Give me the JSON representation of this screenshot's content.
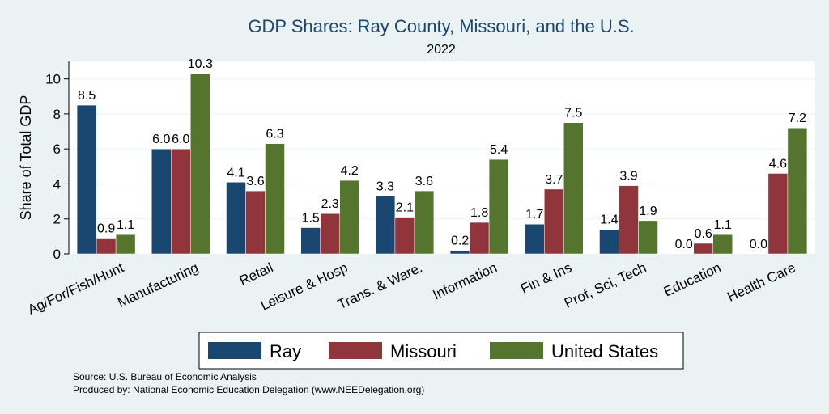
{
  "chart_data": {
    "type": "bar",
    "title": "GDP Shares: Ray County, Missouri, and the U.S.",
    "subtitle": "2022",
    "xlabel": "",
    "ylabel": "Share of Total GDP",
    "ylim": [
      0,
      11
    ],
    "yticks": [
      0,
      2,
      4,
      6,
      8,
      10
    ],
    "grid": true,
    "legend_position": "bottom",
    "categories": [
      "Ag/For/Fish/Hunt",
      "Manufacturing",
      "Retail",
      "Leisure & Hosp",
      "Trans. & Ware.",
      "Information",
      "Fin & Ins",
      "Prof, Sci, Tech",
      "Education",
      "Health Care"
    ],
    "series": [
      {
        "name": "Ray",
        "color": "#1a476f",
        "values": [
          8.5,
          6.0,
          4.1,
          1.5,
          3.3,
          0.2,
          1.7,
          1.4,
          0.0,
          0.0
        ]
      },
      {
        "name": "Missouri",
        "color": "#90353b",
        "values": [
          0.9,
          6.0,
          3.6,
          2.3,
          2.1,
          1.8,
          3.7,
          3.9,
          0.6,
          4.6
        ]
      },
      {
        "name": "United States",
        "color": "#55752f",
        "values": [
          1.1,
          10.3,
          6.3,
          4.2,
          3.6,
          5.4,
          7.5,
          1.9,
          1.1,
          7.2
        ]
      }
    ]
  },
  "notes": {
    "source": "Source: U.S. Bureau of Economic Analysis",
    "produced": "Produced by: National Economic Education Delegation (www.NEEDelegation.org)"
  }
}
